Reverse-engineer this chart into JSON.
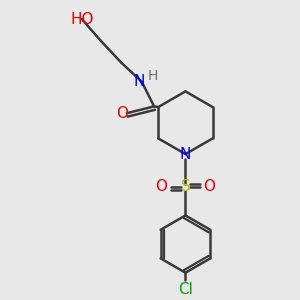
{
  "bg_color": "#e8e8e8",
  "atom_colors": {
    "C": "#3a3a3a",
    "N": "#0000ee",
    "O": "#ee0000",
    "S": "#bbbb00",
    "Cl": "#00aa00",
    "H": "#707070"
  },
  "bond_color": "#3a3a3a",
  "bond_width": 1.8,
  "font_size": 11
}
